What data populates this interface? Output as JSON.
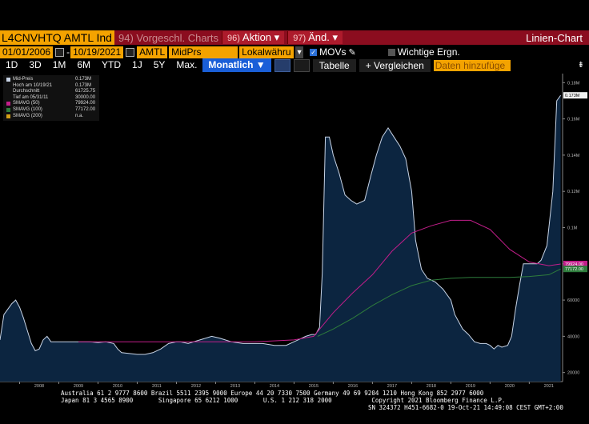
{
  "header": {
    "ticker": "L4CNVHTQ AMTL Ind",
    "menu_vorgeschl": "94) Vorgeschl. Charts",
    "aktion_num": "96)",
    "aktion_label": "Aktion",
    "aend_num": "97)",
    "aend_label": "Änd.",
    "chart_type": "Linien-Chart"
  },
  "params": {
    "date_from": "01/01/2006",
    "date_to": "10/19/2021",
    "security": "AMTL",
    "field": "MidPrs",
    "currency": "Lokalwähru",
    "movs_label": "MOVs",
    "events_label": "Wichtige Ergn."
  },
  "range": {
    "buttons": [
      "1D",
      "3D",
      "1M",
      "6M",
      "YTD",
      "1J",
      "5Y",
      "Max."
    ],
    "frequency": "Monatlich",
    "table_label": "Tabelle",
    "compare_label": "+ Vergleichen",
    "add_data_placeholder": "Daten hinzufüge"
  },
  "legend": {
    "rows": [
      {
        "label": "Mid-Preis",
        "value": "0.173M"
      },
      {
        "label": "Hoch am 10/19/21",
        "value": "0.173M"
      },
      {
        "label": "Durchschnitt",
        "value": "61725.75"
      },
      {
        "label": "Tief am 05/31/11",
        "value": "30000.00"
      },
      {
        "label": "SMAVG (50)",
        "value": "79924.00"
      },
      {
        "label": "SMAVG (100)",
        "value": "77172.00"
      },
      {
        "label": "SMAVG (200)",
        "value": "n.a."
      }
    ]
  },
  "chart_data": {
    "type": "line",
    "x_unit": "year",
    "ylim": [
      15000,
      185000
    ],
    "y_ticks": [
      20000,
      40000,
      60000,
      80000,
      100000,
      120000,
      140000,
      160000,
      180000
    ],
    "y_tick_labels": [
      "20000",
      "40000",
      "60000",
      "80000",
      "0.1M",
      "0.12M",
      "0.14M",
      "0.16M",
      "0.18M"
    ],
    "x_tick_labels": [
      "2008",
      "2009",
      "2010",
      "2011",
      "2012",
      "2013",
      "2014",
      "2015",
      "2016",
      "2017",
      "2018",
      "2019",
      "2020",
      "2021"
    ],
    "last_value_labels": [
      "0.173M",
      "79924.00",
      "77172.00"
    ],
    "colors": {
      "price": "#c8d4e6",
      "fill": "#0c2540",
      "smavg50": "#c21e8a",
      "smavg100": "#2e7d3c",
      "axis": "#888"
    },
    "series": [
      {
        "name": "Mid-Preis",
        "x": [
          2007.5,
          2007.6,
          2007.7,
          2007.8,
          2007.9,
          2008.0,
          2008.1,
          2008.2,
          2008.3,
          2008.4,
          2008.5,
          2008.6,
          2008.7,
          2008.8,
          2008.9,
          2009.0,
          2009.2,
          2009.4,
          2009.6,
          2009.8,
          2010.0,
          2010.2,
          2010.4,
          2010.5,
          2010.6,
          2010.8,
          2011.0,
          2011.2,
          2011.4,
          2011.6,
          2011.8,
          2012.0,
          2012.1,
          2012.3,
          2012.6,
          2012.9,
          2013.1,
          2013.4,
          2013.7,
          2014.0,
          2014.2,
          2014.5,
          2014.8,
          2015.0,
          2015.1,
          2015.3,
          2015.45,
          2015.55,
          2015.65,
          2015.72,
          2015.8,
          2015.9,
          2016.0,
          2016.15,
          2016.3,
          2016.45,
          2016.6,
          2016.8,
          2016.95,
          2017.1,
          2017.25,
          2017.4,
          2017.55,
          2017.7,
          2017.85,
          2018.0,
          2018.1,
          2018.25,
          2018.4,
          2018.6,
          2018.8,
          2019.0,
          2019.1,
          2019.3,
          2019.45,
          2019.6,
          2019.75,
          2019.9,
          2020.0,
          2020.1,
          2020.2,
          2020.3,
          2020.45,
          2020.55,
          2020.65,
          2020.75,
          2020.85,
          2021.0,
          2021.1,
          2021.2,
          2021.3,
          2021.45,
          2021.6,
          2021.7,
          2021.8
        ],
        "y": [
          38000,
          52000,
          55000,
          58000,
          60000,
          56000,
          50000,
          43000,
          36000,
          32000,
          33000,
          38000,
          40000,
          37000,
          37000,
          37000,
          37000,
          37000,
          37000,
          37000,
          36500,
          37000,
          36000,
          33000,
          31000,
          30500,
          30000,
          30000,
          31000,
          33000,
          36000,
          37000,
          37000,
          36000,
          38000,
          40000,
          39000,
          37000,
          36000,
          36000,
          36000,
          35000,
          35000,
          37000,
          38000,
          40000,
          41000,
          41000,
          45000,
          75000,
          150000,
          150000,
          140000,
          130000,
          118000,
          115000,
          113000,
          115000,
          128000,
          140000,
          150000,
          155000,
          150000,
          145000,
          138000,
          120000,
          93000,
          77000,
          72000,
          70000,
          66000,
          60000,
          52000,
          44000,
          41000,
          37000,
          36000,
          36000,
          35000,
          33000,
          35000,
          34000,
          35000,
          40000,
          55000,
          68000,
          80000,
          80000,
          80000,
          80000,
          82000,
          90000,
          120000,
          170000,
          173000
        ]
      },
      {
        "name": "SMAVG (50)",
        "x": [
          2009.5,
          2010.0,
          2011.0,
          2012.0,
          2013.0,
          2014.0,
          2015.0,
          2015.5,
          2016.0,
          2016.5,
          2017.0,
          2017.5,
          2018.0,
          2018.5,
          2019.0,
          2019.5,
          2020.0,
          2020.5,
          2021.0,
          2021.5,
          2021.8
        ],
        "y": [
          37000,
          37000,
          37000,
          37000,
          37000,
          37000,
          38000,
          40000,
          53000,
          64000,
          74000,
          87000,
          97000,
          101000,
          104000,
          104000,
          99000,
          88000,
          81000,
          79000,
          79924
        ]
      },
      {
        "name": "SMAVG (100)",
        "x": [
          2015.6,
          2016.0,
          2016.5,
          2017.0,
          2017.5,
          2018.0,
          2018.5,
          2019.0,
          2019.5,
          2020.0,
          2020.5,
          2021.0,
          2021.5,
          2021.8
        ],
        "y": [
          40000,
          44000,
          50000,
          57000,
          63000,
          68000,
          71000,
          72000,
          72500,
          72500,
          72500,
          73000,
          74000,
          77172
        ]
      }
    ]
  },
  "footer": {
    "line1": "Australia 61 2 9777 8600 Brazil 5511 2395 9000 Europe 44 20 7330 7500 Germany 49 69 9204 1210 Hong Kong 852 2977 6000",
    "line2": "Japan 81 3 4565 8900       Singapore 65 6212 1000       U.S. 1 212 318 2000           Copyright 2021 Bloomberg Finance L.P.",
    "line3": "SN 324372 H451-6682-0 19-Oct-21 14:49:08 CEST GMT+2:00"
  }
}
